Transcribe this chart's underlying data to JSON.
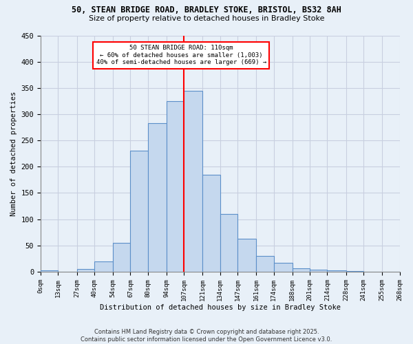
{
  "title1": "50, STEAN BRIDGE ROAD, BRADLEY STOKE, BRISTOL, BS32 8AH",
  "title2": "Size of property relative to detached houses in Bradley Stoke",
  "xlabel": "Distribution of detached houses by size in Bradley Stoke",
  "ylabel": "Number of detached properties",
  "bar_color": "#c5d8ee",
  "bar_edge_color": "#5b8fc9",
  "bg_color": "#e8f0f8",
  "grid_color": "#c8cfe0",
  "vline_x": 107,
  "vline_color": "red",
  "annotation_text": "50 STEAN BRIDGE ROAD: 110sqm\n← 60% of detached houses are smaller (1,003)\n40% of semi-detached houses are larger (669) →",
  "annotation_box_color": "white",
  "annotation_box_edge": "red",
  "bins": [
    0,
    13,
    27,
    40,
    54,
    67,
    80,
    94,
    107,
    121,
    134,
    147,
    161,
    174,
    188,
    201,
    214,
    228,
    241,
    255,
    268
  ],
  "counts": [
    3,
    0,
    5,
    20,
    55,
    230,
    283,
    325,
    345,
    185,
    110,
    63,
    30,
    17,
    7,
    4,
    2,
    1,
    0,
    0
  ],
  "tick_labels": [
    "0sqm",
    "13sqm",
    "27sqm",
    "40sqm",
    "54sqm",
    "67sqm",
    "80sqm",
    "94sqm",
    "107sqm",
    "121sqm",
    "134sqm",
    "147sqm",
    "161sqm",
    "174sqm",
    "188sqm",
    "201sqm",
    "214sqm",
    "228sqm",
    "241sqm",
    "255sqm",
    "268sqm"
  ],
  "footer": "Contains HM Land Registry data © Crown copyright and database right 2025.\nContains public sector information licensed under the Open Government Licence v3.0.",
  "ylim": [
    0,
    450
  ],
  "yticks": [
    0,
    50,
    100,
    150,
    200,
    250,
    300,
    350,
    400,
    450
  ]
}
